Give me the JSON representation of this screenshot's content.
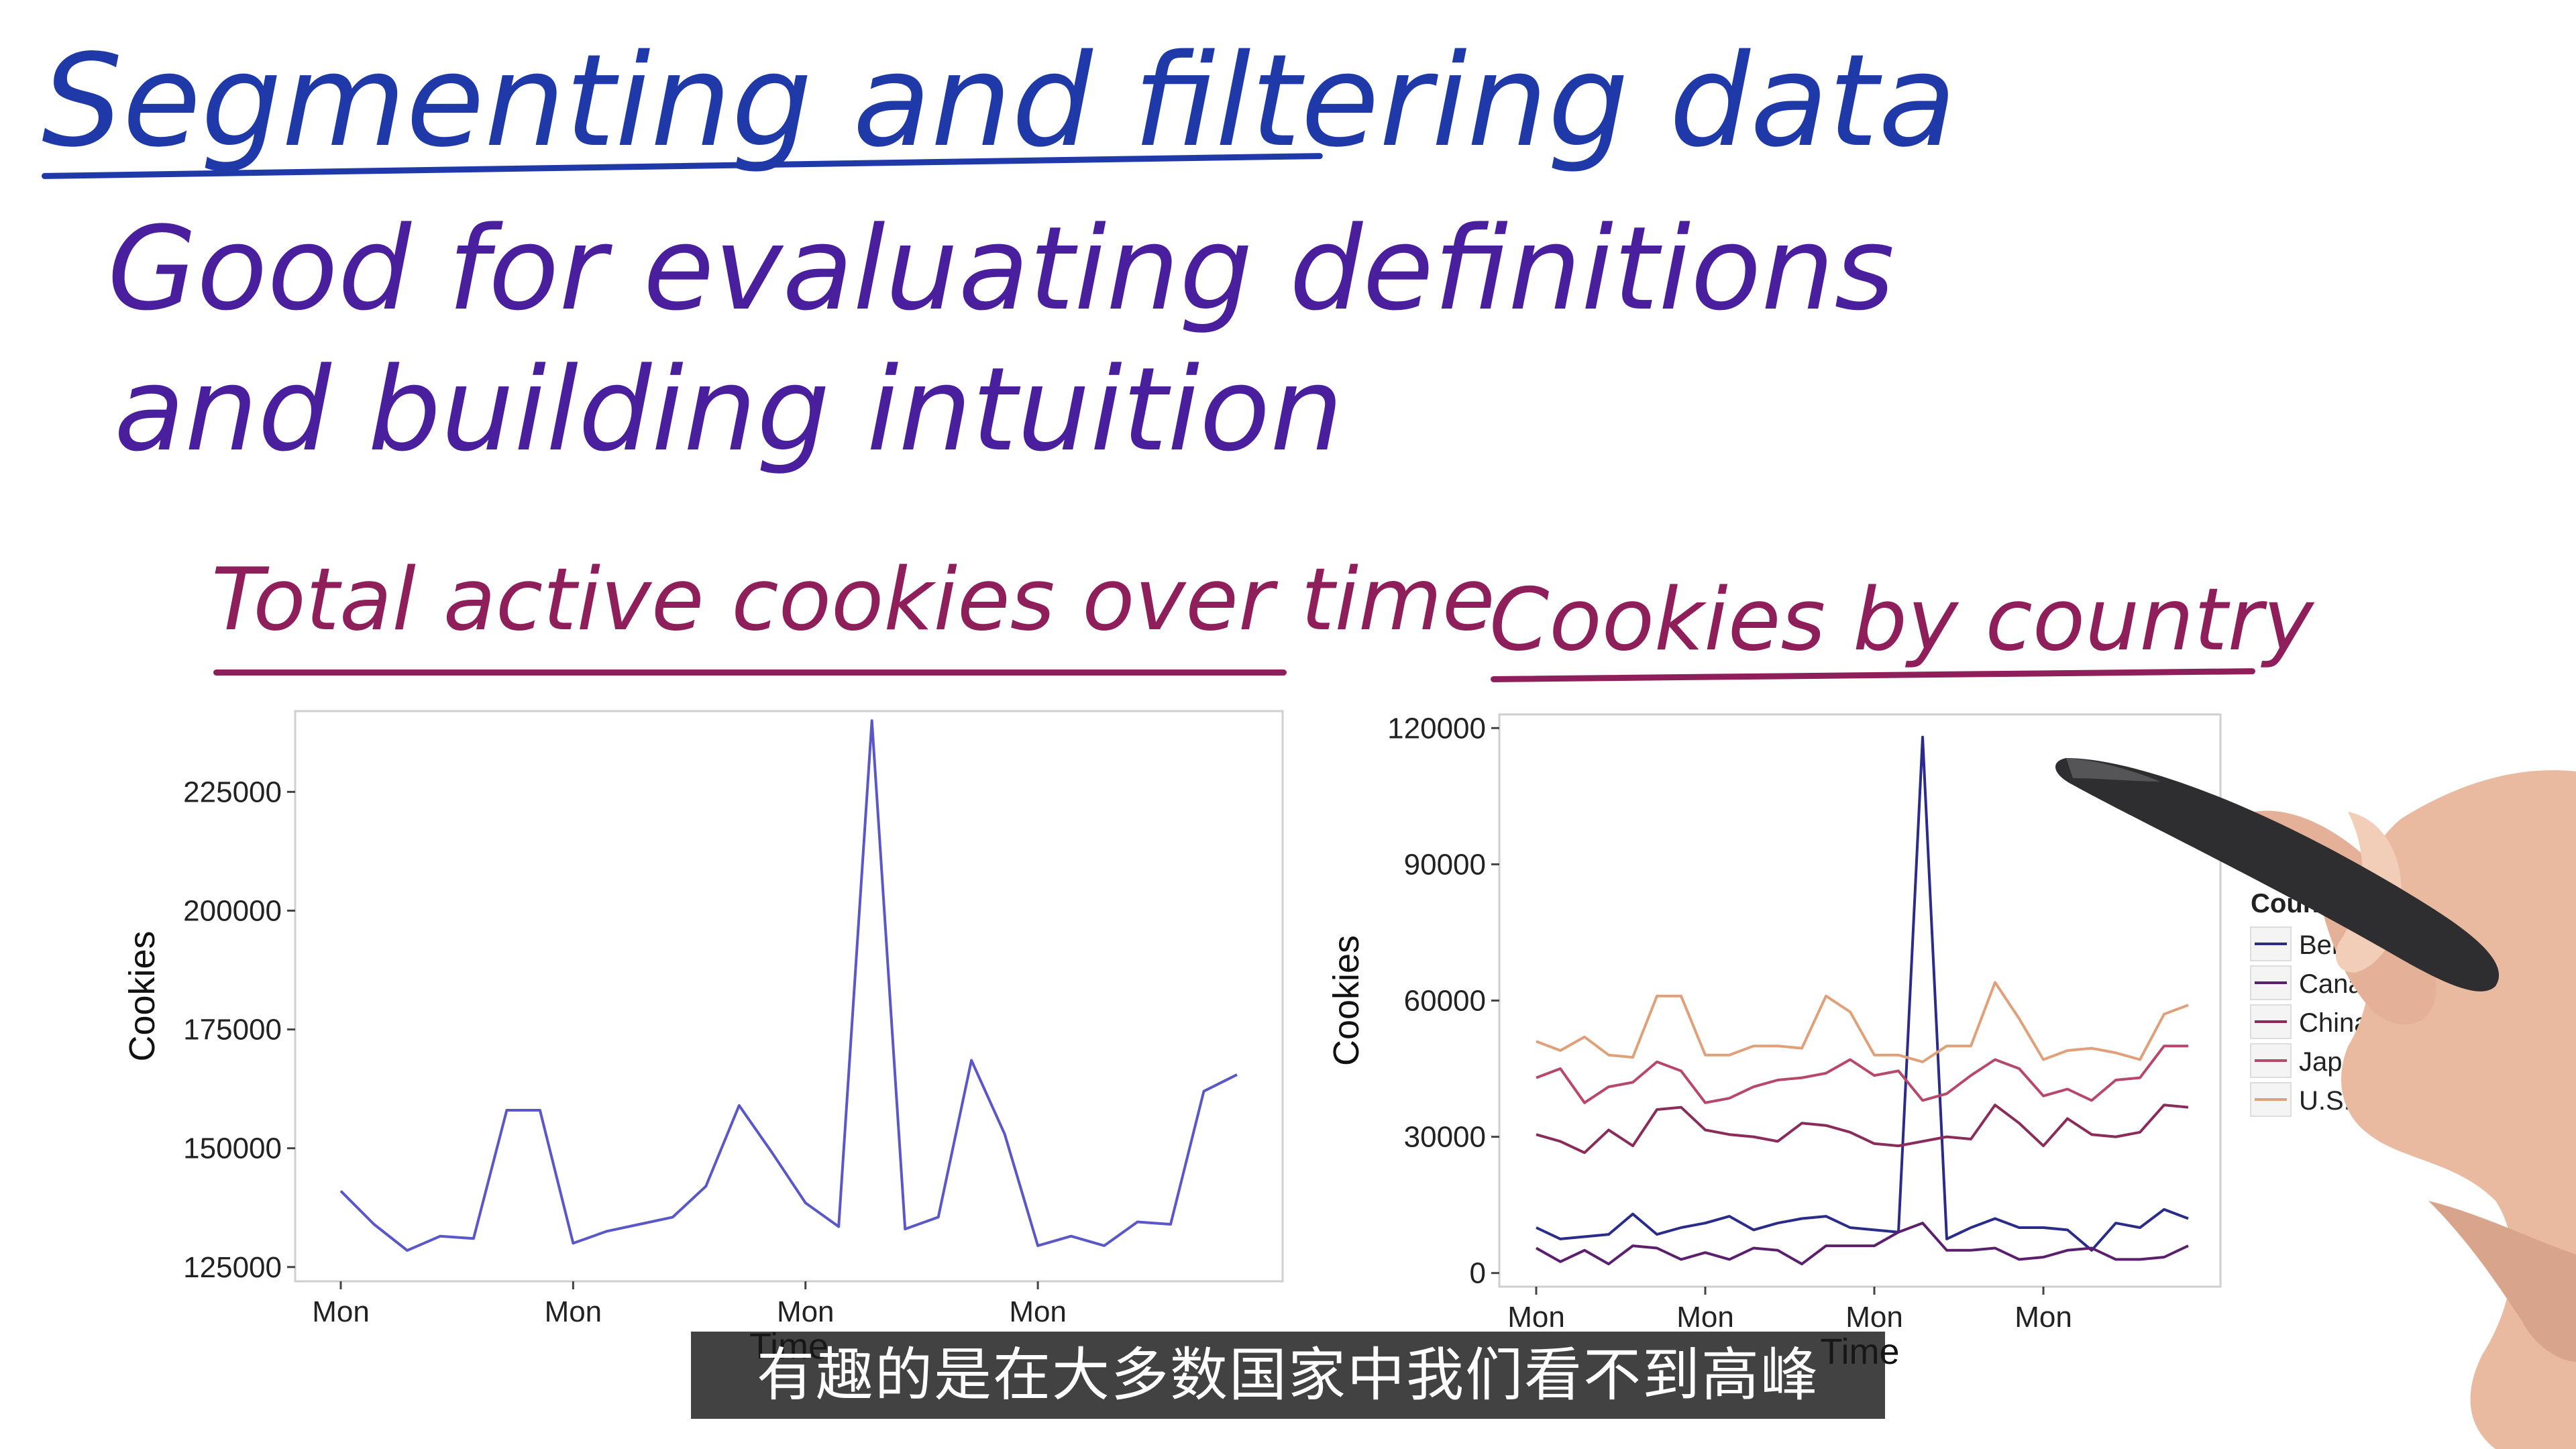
{
  "slide": {
    "title": "Segmenting and filtering data",
    "bullet_line1": "Good for evaluating definitions",
    "bullet_line2": "and building intuition",
    "left_title": "Total active cookies over time",
    "right_title": "Cookies by country",
    "subtitle": "有趣的是在大多数国家中我们看不到高峰"
  },
  "colors": {
    "title": "#1f3aa8",
    "bullets": "#4a1f9e",
    "chart_titles": "#8f1f5a",
    "series": [
      "#2b2b8a",
      "#5c1f6e",
      "#8a2c5a",
      "#b8486a",
      "#e0a07a"
    ]
  },
  "chart_data": [
    {
      "type": "line",
      "title": "",
      "xlabel": "Time",
      "ylabel": "Cookies",
      "ylim": [
        122000,
        242000
      ],
      "xticks": [
        "Mon",
        "Mon",
        "Mon",
        "Mon"
      ],
      "yticks": [
        "125000",
        "150000",
        "175000",
        "200000",
        "225000"
      ],
      "grid": false,
      "series": [
        {
          "values": [
            141000,
            134000,
            128500,
            131500,
            131000,
            158000,
            158000,
            130000,
            132500,
            134000,
            135500,
            142000,
            159000,
            149000,
            138500,
            133500,
            240000,
            133000,
            135500,
            168500,
            153000,
            129500,
            131500,
            129500,
            134500,
            134000,
            162000,
            165500
          ]
        }
      ]
    },
    {
      "type": "line",
      "title": "",
      "xlabel": "Time",
      "ylabel": "Cookies",
      "ylim": [
        -3000,
        123000
      ],
      "xticks": [
        "Mon",
        "Mon",
        "Mon",
        "Mon"
      ],
      "yticks": [
        "0",
        "30000",
        "60000",
        "90000",
        "120000"
      ],
      "legend_title": "Country",
      "legend_position": "right",
      "grid": false,
      "series": [
        {
          "name": "Berzerkistan",
          "values": [
            10000,
            7500,
            8000,
            8500,
            13000,
            8500,
            10000,
            11000,
            12500,
            9500,
            11000,
            12000,
            12500,
            10000,
            9500,
            9000,
            118000,
            7500,
            10000,
            12000,
            10000,
            10000,
            9500,
            5000,
            11000,
            10000,
            14000,
            12000
          ]
        },
        {
          "name": "Canada",
          "values": [
            5500,
            2500,
            5000,
            2000,
            6000,
            5500,
            3000,
            4500,
            3000,
            5500,
            5000,
            2000,
            6000,
            6000,
            6000,
            9000,
            11000,
            5000,
            5000,
            5500,
            3000,
            3500,
            5000,
            5500,
            3000,
            3000,
            3500,
            6000
          ]
        },
        {
          "name": "China",
          "values": [
            30500,
            29000,
            26500,
            31500,
            28000,
            36000,
            36500,
            31500,
            30500,
            30000,
            29000,
            33000,
            32500,
            31000,
            28500,
            28000,
            29000,
            30000,
            29500,
            37000,
            33000,
            28000,
            34000,
            30500,
            30000,
            31000,
            37000,
            36500
          ]
        },
        {
          "name": "Japan",
          "values": [
            43000,
            45000,
            37500,
            41000,
            42000,
            46500,
            44500,
            37500,
            38500,
            41000,
            42500,
            43000,
            44000,
            47000,
            43500,
            44500,
            38000,
            39500,
            43500,
            47000,
            45000,
            39000,
            40500,
            38000,
            42500,
            43000,
            50000,
            50000
          ]
        },
        {
          "name": "U.S.",
          "values": [
            51000,
            49000,
            52000,
            48000,
            47500,
            61000,
            61000,
            48000,
            48000,
            50000,
            50000,
            49500,
            61000,
            57500,
            48000,
            48000,
            46500,
            50000,
            50000,
            64000,
            56000,
            47000,
            49000,
            49500,
            48500,
            47000,
            57000,
            59000
          ]
        }
      ]
    }
  ]
}
